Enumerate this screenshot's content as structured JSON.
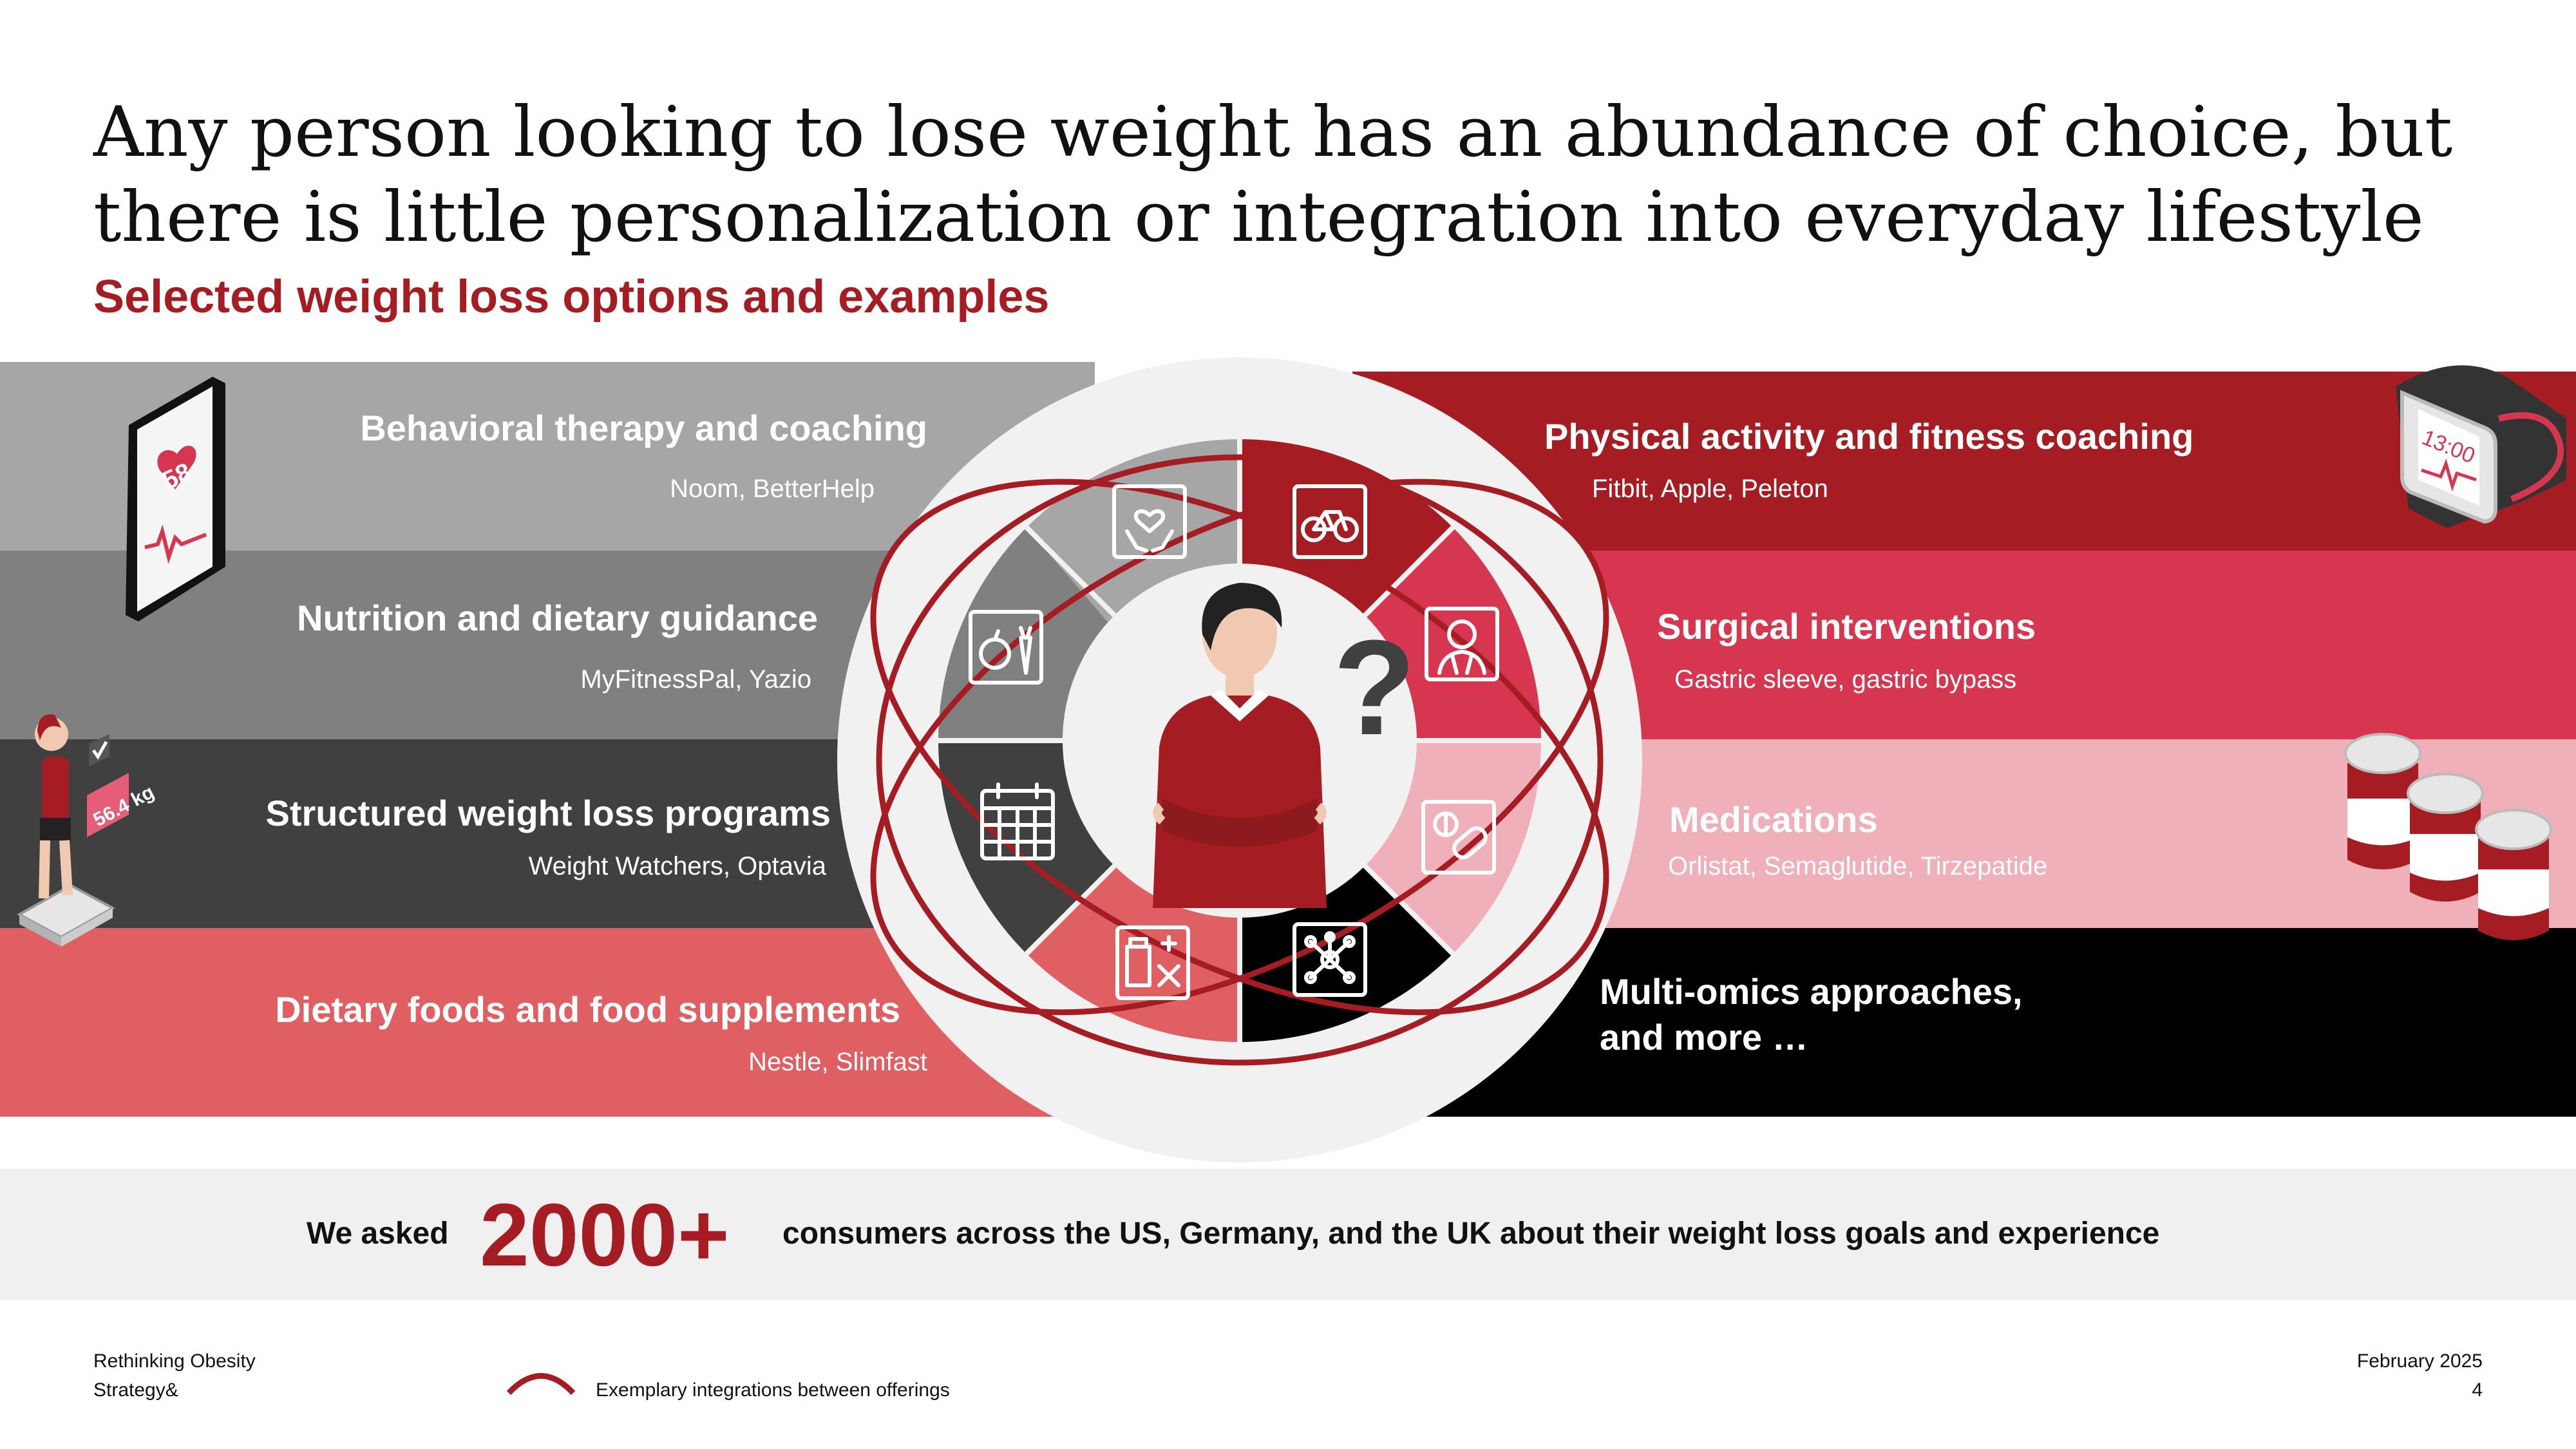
{
  "header": {
    "title": "Any person looking to lose weight has an abundance of choice, but there is little personalization or integration into everyday lifestyle",
    "subtitle": "Selected weight loss options and examples"
  },
  "colors": {
    "brand_red": "#a51d23",
    "band_light_gray": "#a6a6a6",
    "band_mid_gray": "#808080",
    "band_dark_gray": "#404040",
    "band_coral": "#df5f62",
    "band_dark_red": "#a51d23",
    "band_crimson": "#d63650",
    "band_pink": "#efb0b9",
    "band_black": "#000000"
  },
  "left_options": [
    {
      "title": "Behavioral therapy and coaching",
      "examples": "Noom, BetterHelp",
      "icon": "hands-heart-icon"
    },
    {
      "title": "Nutrition and dietary guidance",
      "examples": "MyFitnessPal, Yazio",
      "icon": "apple-carrot-icon"
    },
    {
      "title": "Structured weight loss programs",
      "examples": "Weight Watchers, Optavia",
      "icon": "calendar-icon"
    },
    {
      "title": "Dietary foods and food supplements",
      "examples": "Nestle, Slimfast",
      "icon": "supplements-icon"
    }
  ],
  "right_options": [
    {
      "title": "Physical activity and fitness coaching",
      "examples": "Fitbit, Apple, Peleton",
      "icon": "bicycle-icon"
    },
    {
      "title": "Surgical interventions",
      "examples": "Gastric sleeve, gastric bypass",
      "icon": "surgeon-icon"
    },
    {
      "title": "Medications",
      "examples": "Orlistat, Semaglutide, Tirzepatide",
      "icon": "pills-icon"
    },
    {
      "title_line1": "Multi-omics approaches,",
      "title_line2": "and more …",
      "icon": "molecule-network-icon"
    }
  ],
  "illustrations": {
    "phone_heart_rate": "58",
    "scale_weight": "56.4 kg",
    "watch_time": "13:00"
  },
  "banner": {
    "prefix": "We asked",
    "number": "2000+",
    "suffix": "consumers across the US, Germany, and the UK about their weight loss goals and experience"
  },
  "footer": {
    "doc_title": "Rethinking Obesity",
    "company": "Strategy&",
    "legend": "Exemplary integrations between offerings",
    "date": "February 2025",
    "page": "4"
  }
}
